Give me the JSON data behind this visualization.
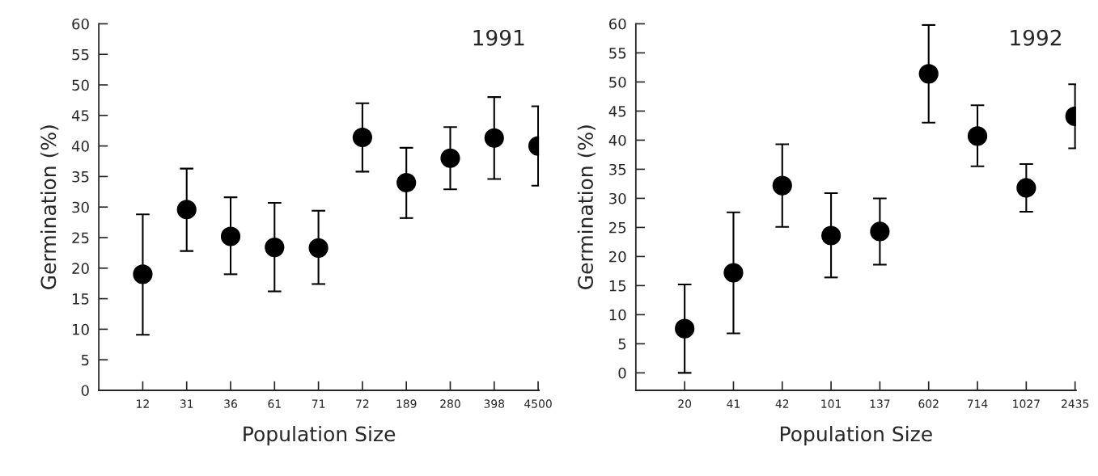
{
  "chart_data": [
    {
      "type": "scatter",
      "title": "1991",
      "xlabel": "Population Size",
      "ylabel": "Germination (%)",
      "categories": [
        "12",
        "31",
        "36",
        "61",
        "71",
        "72",
        "189",
        "280",
        "398",
        "4500"
      ],
      "values": [
        19,
        29.6,
        25.2,
        23.4,
        23.3,
        41.4,
        34,
        38,
        41.3,
        40
      ],
      "errors": [
        [
          9.1,
          28.8
        ],
        [
          22.8,
          36.3
        ],
        [
          19,
          31.6
        ],
        [
          16.2,
          30.7
        ],
        [
          17.4,
          29.4
        ],
        [
          35.8,
          47
        ],
        [
          28.2,
          39.7
        ],
        [
          32.9,
          43.1
        ],
        [
          34.6,
          48
        ],
        [
          33.5,
          46.5
        ]
      ],
      "color": "#000000",
      "marker": "circle",
      "ylim": [
        0,
        60
      ],
      "yticks": [
        0,
        5,
        10,
        15,
        20,
        25,
        30,
        35,
        40,
        45,
        50,
        55,
        60
      ],
      "grid": false,
      "legend": false
    },
    {
      "type": "scatter",
      "title": "1992",
      "xlabel": "Population Size",
      "ylabel": "Germination (%)",
      "categories": [
        "20",
        "41",
        "42",
        "101",
        "137",
        "602",
        "714",
        "1027",
        "2435"
      ],
      "values": [
        7.6,
        17.2,
        32.2,
        23.6,
        24.3,
        51.4,
        40.7,
        31.8,
        44.1
      ],
      "errors": [
        [
          0,
          15.2
        ],
        [
          6.8,
          27.6
        ],
        [
          25.1,
          39.3
        ],
        [
          16.4,
          30.9
        ],
        [
          18.6,
          30
        ],
        [
          43,
          59.8
        ],
        [
          35.5,
          46
        ],
        [
          27.7,
          35.9
        ],
        [
          38.6,
          49.6
        ]
      ],
      "color": "#000000",
      "marker": "circle",
      "ylim": [
        -3,
        60
      ],
      "yticks": [
        0,
        5,
        10,
        15,
        20,
        25,
        30,
        35,
        40,
        45,
        50,
        55,
        60
      ],
      "grid": false,
      "legend": false
    }
  ]
}
